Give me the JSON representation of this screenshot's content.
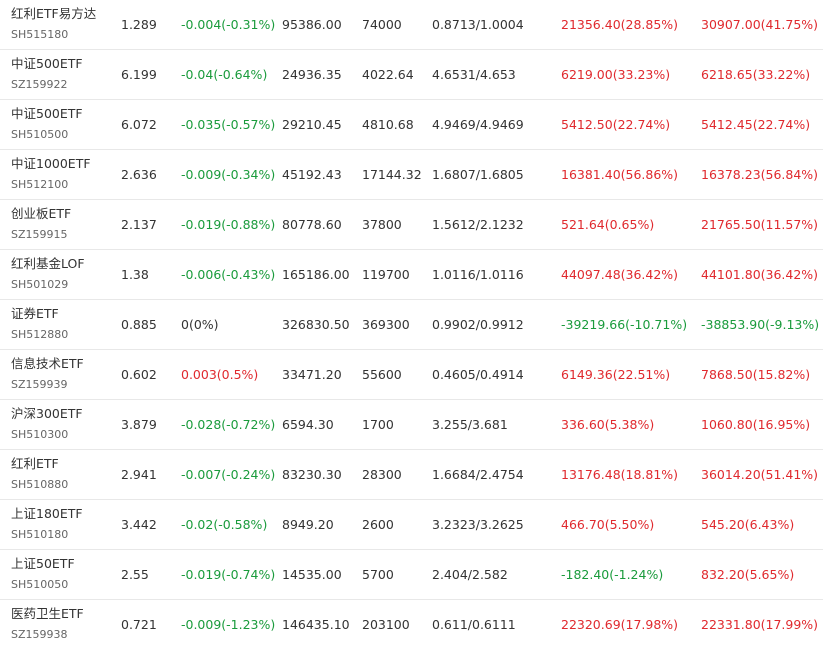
{
  "colors": {
    "up": "#e0292e",
    "down": "#1a9b3c",
    "flat": "#333333"
  },
  "rows": [
    {
      "name": "红利ETF易方达",
      "code": "SH515180",
      "price": "1.289",
      "change": "-0.004(-0.31%)",
      "change_dir": "down",
      "v1": "95386.00",
      "v2": "74000",
      "ratio": "0.8713/1.0004",
      "p1": "21356.40(28.85%)",
      "p1_dir": "up",
      "p2": "30907.00(41.75%)",
      "p2_dir": "up"
    },
    {
      "name": "中证500ETF",
      "code": "SZ159922",
      "price": "6.199",
      "change": "-0.04(-0.64%)",
      "change_dir": "down",
      "v1": "24936.35",
      "v2": "4022.64",
      "ratio": "4.6531/4.653",
      "p1": "6219.00(33.23%)",
      "p1_dir": "up",
      "p2": "6218.65(33.22%)",
      "p2_dir": "up"
    },
    {
      "name": "中证500ETF",
      "code": "SH510500",
      "price": "6.072",
      "change": "-0.035(-0.57%)",
      "change_dir": "down",
      "v1": "29210.45",
      "v2": "4810.68",
      "ratio": "4.9469/4.9469",
      "p1": "5412.50(22.74%)",
      "p1_dir": "up",
      "p2": "5412.45(22.74%)",
      "p2_dir": "up"
    },
    {
      "name": "中证1000ETF",
      "code": "SH512100",
      "price": "2.636",
      "change": "-0.009(-0.34%)",
      "change_dir": "down",
      "v1": "45192.43",
      "v2": "17144.32",
      "ratio": "1.6807/1.6805",
      "p1": "16381.40(56.86%)",
      "p1_dir": "up",
      "p2": "16378.23(56.84%)",
      "p2_dir": "up"
    },
    {
      "name": "创业板ETF",
      "code": "SZ159915",
      "price": "2.137",
      "change": "-0.019(-0.88%)",
      "change_dir": "down",
      "v1": "80778.60",
      "v2": "37800",
      "ratio": "1.5612/2.1232",
      "p1": "521.64(0.65%)",
      "p1_dir": "up",
      "p2": "21765.50(11.57%)",
      "p2_dir": "up"
    },
    {
      "name": "红利基金LOF",
      "code": "SH501029",
      "price": "1.38",
      "change": "-0.006(-0.43%)",
      "change_dir": "down",
      "v1": "165186.00",
      "v2": "119700",
      "ratio": "1.0116/1.0116",
      "p1": "44097.48(36.42%)",
      "p1_dir": "up",
      "p2": "44101.80(36.42%)",
      "p2_dir": "up"
    },
    {
      "name": "证券ETF",
      "code": "SH512880",
      "price": "0.885",
      "change": "0(0%)",
      "change_dir": "flat",
      "v1": "326830.50",
      "v2": "369300",
      "ratio": "0.9902/0.9912",
      "p1": "-39219.66(-10.71%)",
      "p1_dir": "down",
      "p2": "-38853.90(-9.13%)",
      "p2_dir": "down"
    },
    {
      "name": "信息技术ETF",
      "code": "SZ159939",
      "price": "0.602",
      "change": "0.003(0.5%)",
      "change_dir": "up",
      "v1": "33471.20",
      "v2": "55600",
      "ratio": "0.4605/0.4914",
      "p1": "6149.36(22.51%)",
      "p1_dir": "up",
      "p2": "7868.50(15.82%)",
      "p2_dir": "up"
    },
    {
      "name": "沪深300ETF",
      "code": "SH510300",
      "price": "3.879",
      "change": "-0.028(-0.72%)",
      "change_dir": "down",
      "v1": "6594.30",
      "v2": "1700",
      "ratio": "3.255/3.681",
      "p1": "336.60(5.38%)",
      "p1_dir": "up",
      "p2": "1060.80(16.95%)",
      "p2_dir": "up"
    },
    {
      "name": "红利ETF",
      "code": "SH510880",
      "price": "2.941",
      "change": "-0.007(-0.24%)",
      "change_dir": "down",
      "v1": "83230.30",
      "v2": "28300",
      "ratio": "1.6684/2.4754",
      "p1": "13176.48(18.81%)",
      "p1_dir": "up",
      "p2": "36014.20(51.41%)",
      "p2_dir": "up"
    },
    {
      "name": "上证180ETF",
      "code": "SH510180",
      "price": "3.442",
      "change": "-0.02(-0.58%)",
      "change_dir": "down",
      "v1": "8949.20",
      "v2": "2600",
      "ratio": "3.2323/3.2625",
      "p1": "466.70(5.50%)",
      "p1_dir": "up",
      "p2": "545.20(6.43%)",
      "p2_dir": "up"
    },
    {
      "name": "上证50ETF",
      "code": "SH510050",
      "price": "2.55",
      "change": "-0.019(-0.74%)",
      "change_dir": "down",
      "v1": "14535.00",
      "v2": "5700",
      "ratio": "2.404/2.582",
      "p1": "-182.40(-1.24%)",
      "p1_dir": "down",
      "p2": "832.20(5.65%)",
      "p2_dir": "up"
    },
    {
      "name": "医药卫生ETF",
      "code": "SZ159938",
      "price": "0.721",
      "change": "-0.009(-1.23%)",
      "change_dir": "down",
      "v1": "146435.10",
      "v2": "203100",
      "ratio": "0.611/0.6111",
      "p1": "22320.69(17.98%)",
      "p1_dir": "up",
      "p2": "22331.80(17.99%)",
      "p2_dir": "up"
    }
  ]
}
